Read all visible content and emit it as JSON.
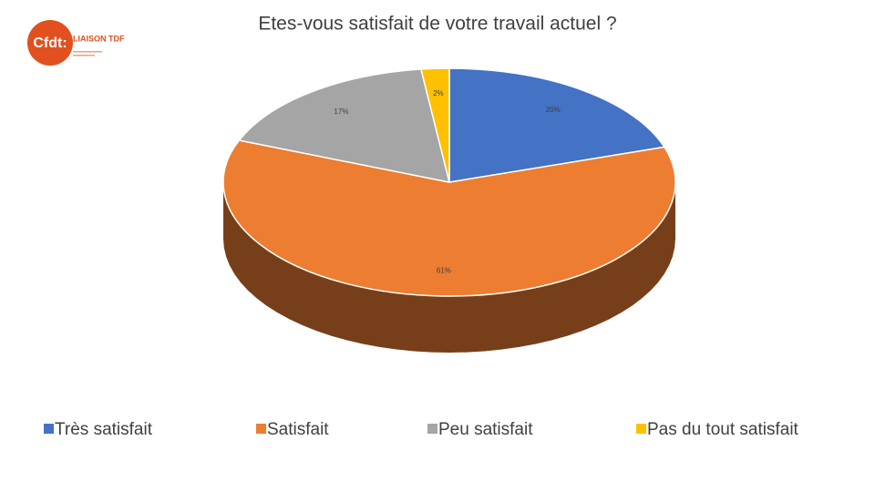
{
  "logo": {
    "name": "Cfdt:",
    "subtitle": "LIAISON TDF"
  },
  "chart_data": {
    "type": "pie3d",
    "title": "Etes-vous satisfait de votre travail actuel ?",
    "categories": [
      "Très satisfait",
      "Satisfait",
      "Peu satisfait",
      "Pas du tout satisfait"
    ],
    "values": [
      20,
      61,
      17,
      2
    ],
    "value_labels": [
      "20%",
      "61%",
      "17%",
      "2%"
    ],
    "colors": [
      "#4472c4",
      "#ed7d31",
      "#a5a5a5",
      "#ffc000"
    ],
    "legend": "bottom"
  }
}
